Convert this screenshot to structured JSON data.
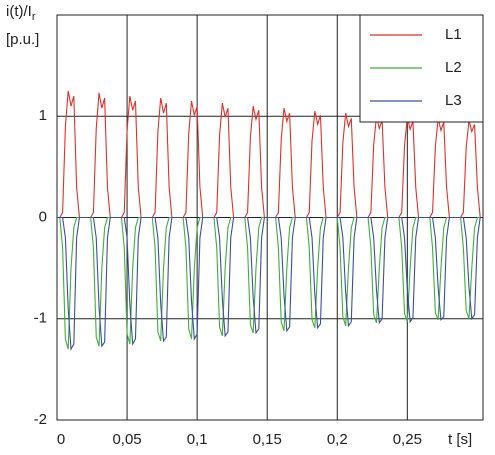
{
  "chart_data": {
    "type": "line",
    "y_label": "i(t)/I",
    "y_label_sub": "r",
    "y_unit": "[p.u.]",
    "x_label": "t [s]",
    "xlim": [
      0,
      0.304
    ],
    "ylim": [
      -2,
      2
    ],
    "xticks": [
      0,
      {
        "value": 0.05,
        "label": "0,05"
      },
      {
        "value": 0.1,
        "label": "0,1"
      },
      {
        "value": 0.15,
        "label": "0,15"
      },
      {
        "value": 0.2,
        "label": "0,2"
      },
      {
        "value": 0.25,
        "label": "0,25"
      }
    ],
    "yticks": [
      -2,
      -1,
      0,
      1
    ],
    "grid": true,
    "legend": "upper right",
    "x": [
      0,
      0.002,
      0.004,
      0.006,
      0.008,
      0.01,
      0.012,
      0.014,
      0.016,
      0.018,
      0.02,
      0.022,
      0.024,
      0.026,
      0.028,
      0.03,
      0.032,
      0.034,
      0.036,
      0.038,
      0.04,
      0.042,
      0.044,
      0.046,
      0.048,
      0.05,
      0.052,
      0.054,
      0.056,
      0.058,
      0.06,
      0.062,
      0.064,
      0.066,
      0.068,
      0.07,
      0.072,
      0.074,
      0.076,
      0.078,
      0.08,
      0.082,
      0.084,
      0.086,
      0.088,
      0.09,
      0.092,
      0.094,
      0.096,
      0.098,
      0.1,
      0.102,
      0.104,
      0.106,
      0.108,
      0.11,
      0.112,
      0.114,
      0.116,
      0.118,
      0.12,
      0.122,
      0.124,
      0.126,
      0.128,
      0.13,
      0.132,
      0.134,
      0.136,
      0.138,
      0.14,
      0.142,
      0.144,
      0.146,
      0.148,
      0.15,
      0.152,
      0.154,
      0.156,
      0.158,
      0.16,
      0.162,
      0.164,
      0.166,
      0.168,
      0.17,
      0.172,
      0.174,
      0.176,
      0.178,
      0.18,
      0.182,
      0.184,
      0.186,
      0.188,
      0.19,
      0.192,
      0.194,
      0.196,
      0.198,
      0.2,
      0.202,
      0.204,
      0.206,
      0.208,
      0.21,
      0.212,
      0.214,
      0.216,
      0.218,
      0.22,
      0.222,
      0.224,
      0.226,
      0.228,
      0.23,
      0.232,
      0.234,
      0.236,
      0.238,
      0.24,
      0.242,
      0.244,
      0.246,
      0.248,
      0.25,
      0.252,
      0.254,
      0.256,
      0.258,
      0.26,
      0.262,
      0.264,
      0.266,
      0.268,
      0.27,
      0.272,
      0.274,
      0.276,
      0.278,
      0.28,
      0.282,
      0.284,
      0.286,
      0.288,
      0.29,
      0.292,
      0.294,
      0.296,
      0.298,
      0.3,
      0.302
    ],
    "series": [
      {
        "name": "L1",
        "color": "#e0302a",
        "values": [
          0,
          0,
          0.05,
          0.9,
          1.25,
          1.1,
          1.2,
          0.3,
          0,
          0,
          0,
          0,
          0,
          0.05,
          0.88,
          1.23,
          1.08,
          1.18,
          0.3,
          0,
          0,
          0,
          0,
          0,
          0.05,
          0.86,
          1.2,
          1.06,
          1.15,
          0.3,
          0,
          0,
          0,
          0,
          0,
          0.05,
          0.85,
          1.18,
          1.03,
          1.13,
          0.3,
          0,
          0,
          0,
          0,
          0,
          0.05,
          0.83,
          1.15,
          1.01,
          1.1,
          0.3,
          0,
          0,
          0,
          0,
          0,
          0.05,
          0.81,
          1.13,
          0.99,
          1.08,
          0.3,
          0,
          0,
          0,
          0,
          0,
          0.05,
          0.79,
          1.1,
          0.97,
          1.06,
          0.3,
          0,
          0,
          0,
          0,
          0,
          0.05,
          0.77,
          1.08,
          0.95,
          1.03,
          0.3,
          0,
          0,
          0,
          0,
          0,
          0.05,
          0.76,
          1.05,
          0.92,
          1.01,
          0.3,
          0,
          0,
          0,
          0,
          0,
          0.05,
          0.74,
          1.03,
          0.9,
          0.98,
          0.3,
          0,
          0,
          0,
          0,
          0,
          0.05,
          0.72,
          1,
          0.88,
          0.96,
          0.3,
          0,
          0,
          0,
          0,
          0,
          0.05,
          0.71,
          0.99,
          0.87,
          0.95,
          0.3,
          0,
          0,
          0,
          0,
          0,
          0.05,
          0.7,
          0.98,
          0.86,
          0.94,
          0.3,
          0,
          0,
          0,
          0,
          0,
          0.05,
          0.69,
          0.96,
          0.85,
          0.92,
          0.3,
          0
        ]
      },
      {
        "name": "L2",
        "color": "#3fae3a",
        "values": [
          0,
          0,
          -0.3,
          -1.2,
          -1.3,
          -0.5,
          -0.1,
          0,
          0,
          0,
          0,
          0,
          0,
          -0.3,
          -1.18,
          -1.27,
          -0.5,
          -0.1,
          0,
          0,
          0,
          0,
          0,
          0,
          -0.3,
          -1.15,
          -1.25,
          -0.5,
          -0.1,
          0,
          0,
          0,
          0,
          0,
          0,
          -0.3,
          -1.13,
          -1.22,
          -0.5,
          -0.1,
          0,
          0,
          0,
          0,
          0,
          0,
          -0.3,
          -1.1,
          -1.2,
          -0.5,
          -0.1,
          0,
          0,
          0,
          0,
          0,
          0,
          -0.3,
          -1.08,
          -1.17,
          -0.5,
          -0.1,
          0,
          0,
          0,
          0,
          0,
          0,
          -0.3,
          -1.06,
          -1.14,
          -0.5,
          -0.1,
          0,
          0,
          0,
          0,
          0,
          0,
          -0.3,
          -1.03,
          -1.12,
          -0.5,
          -0.1,
          0,
          0,
          0,
          0,
          0,
          0,
          -0.3,
          -1.01,
          -1.09,
          -0.5,
          -0.1,
          0,
          0,
          0,
          0,
          0,
          0,
          -0.3,
          -0.98,
          -1.07,
          -0.5,
          -0.1,
          0,
          0,
          0,
          0,
          0,
          0,
          -0.3,
          -0.96,
          -1.04,
          -0.5,
          -0.1,
          0,
          0,
          0,
          0,
          0,
          0,
          -0.3,
          -0.95,
          -1.03,
          -0.5,
          -0.1,
          0,
          0,
          0,
          0,
          0,
          0,
          -0.3,
          -0.94,
          -1.01,
          -0.5,
          -0.1,
          0,
          0,
          0,
          0,
          0,
          0,
          -0.3,
          -0.92,
          -1,
          -0.5,
          -0.1,
          0,
          0
        ]
      },
      {
        "name": "L3",
        "color": "#3a4fa0",
        "values": [
          0,
          0,
          0,
          -0.2,
          -0.9,
          -1.3,
          -1.25,
          -0.2,
          0,
          0,
          0,
          0,
          0,
          0,
          -0.2,
          -0.88,
          -1.27,
          -1.23,
          -0.2,
          0,
          0,
          0,
          0,
          0,
          0,
          -0.2,
          -0.86,
          -1.25,
          -1.2,
          -0.2,
          0,
          0,
          0,
          0,
          0,
          0,
          -0.2,
          -0.85,
          -1.22,
          -1.18,
          -0.2,
          0,
          0,
          0,
          0,
          0,
          0,
          -0.2,
          -0.83,
          -1.2,
          -1.15,
          -0.2,
          0,
          0,
          0,
          0,
          0,
          0,
          -0.2,
          -0.81,
          -1.17,
          -1.13,
          -0.2,
          0,
          0,
          0,
          0,
          0,
          0,
          -0.2,
          -0.79,
          -1.14,
          -1.1,
          -0.2,
          0,
          0,
          0,
          0,
          0,
          0,
          -0.2,
          -0.77,
          -1.12,
          -1.08,
          -0.2,
          0,
          0,
          0,
          0,
          0,
          0,
          -0.2,
          -0.76,
          -1.09,
          -1.05,
          -0.2,
          0,
          0,
          0,
          0,
          0,
          0,
          -0.2,
          -0.74,
          -1.07,
          -1.03,
          -0.2,
          0,
          0,
          0,
          0,
          0,
          0,
          -0.2,
          -0.72,
          -1.04,
          -1,
          -0.2,
          0,
          0,
          0,
          0,
          0,
          0,
          -0.2,
          -0.71,
          -1.03,
          -0.99,
          -0.2,
          0,
          0,
          0,
          0,
          0,
          0,
          -0.2,
          -0.7,
          -1.01,
          -0.98,
          -0.2,
          0,
          0,
          0,
          0,
          0,
          0,
          -0.2,
          -0.69,
          -1,
          -0.96,
          -0.2,
          0
        ]
      }
    ]
  }
}
